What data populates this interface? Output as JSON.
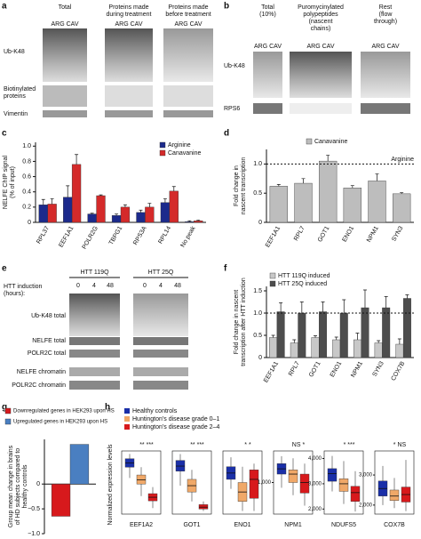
{
  "panel_labels": [
    "a",
    "b",
    "c",
    "d",
    "e",
    "f",
    "g",
    "h"
  ],
  "blot_a": {
    "headers": [
      [
        "Total"
      ],
      [
        "Proteins made",
        "during treatment"
      ],
      [
        "Proteins made",
        "before treatment"
      ]
    ],
    "lanes": [
      "ARG CAV",
      "ARG CAV",
      "ARG CAV"
    ],
    "rows": [
      [
        "Ub-K48"
      ],
      [
        "Biotinylated",
        "proteins"
      ],
      [
        "Vimentin"
      ]
    ]
  },
  "blot_b": {
    "headers": [
      [
        "Total",
        "(10%)"
      ],
      [
        "Puromycinylated",
        "polypeptides",
        "(nascent",
        "chains)"
      ],
      [
        "Rest",
        "(flow",
        "through)"
      ]
    ],
    "lanes": [
      "ARG CAV",
      "ARG CAV",
      "ARG CAV"
    ],
    "rows": [
      [
        "Ub-K48"
      ],
      [
        "RPS6"
      ]
    ]
  },
  "blot_e": {
    "induction": [
      "HTT induction",
      "(hours):"
    ],
    "constructs": [
      "HTT 119Q",
      "HTT 25Q"
    ],
    "hours": [
      0,
      4,
      48,
      0,
      4,
      48
    ],
    "rows": [
      "Ub-K48 total",
      "NELFE total",
      "POLR2C total",
      "NELFE chromatin",
      "POLR2C chromatin"
    ]
  },
  "chart_data": [
    {
      "type": "bar",
      "ylabel": [
        "NELFE ChIP signal",
        "(% of input)"
      ],
      "categories": [
        "RPL37",
        "EEF1A1",
        "POLR2G",
        "TBPG1",
        "RPS3A",
        "RPL14",
        "No peak"
      ],
      "series": [
        {
          "name": "Arginine",
          "color": "#1c2a8c",
          "values": [
            0.23,
            0.33,
            0.11,
            0.09,
            0.13,
            0.26,
            0.01
          ],
          "errors": [
            0.07,
            0.15,
            0.01,
            0.02,
            0.03,
            0.05,
            0.01
          ]
        },
        {
          "name": "Canavanine",
          "color": "#d42a2a",
          "values": [
            0.24,
            0.76,
            0.35,
            0.2,
            0.2,
            0.41,
            0.02
          ],
          "errors": [
            0.07,
            0.13,
            0.01,
            0.03,
            0.05,
            0.06,
            0.01
          ]
        }
      ],
      "ylim": [
        0,
        1.05
      ],
      "yticks": [
        0,
        0.2,
        0.4,
        0.6,
        0.8,
        {
          "value": 1,
          "label": "1.0"
        }
      ],
      "legend": "upper right"
    },
    {
      "type": "bar",
      "ylabel": [
        "Fold change in",
        "nascent transcription"
      ],
      "categories": [
        "EEF1A1",
        "RPL7",
        "GOT1",
        "ENO1",
        "NPM1",
        "SYN3"
      ],
      "series": [
        {
          "name": "Canavanine",
          "color": "#bdbdbd",
          "values": [
            0.62,
            0.67,
            1.05,
            0.59,
            0.71,
            0.49
          ],
          "errors": [
            0.03,
            0.08,
            0.1,
            0.04,
            0.12,
            0.02
          ]
        }
      ],
      "reference_line": 1,
      "reference_label": "Arginine",
      "ylim": [
        0,
        1.25
      ],
      "yticks": [
        0,
        0.5,
        {
          "value": 1,
          "label": "1.0"
        }
      ],
      "legend": "top"
    },
    {
      "type": "bar",
      "ylabel": [
        "Fold change in nascent",
        "transcription after HTT induction"
      ],
      "categories": [
        "EEF1A1",
        "RPL7",
        "GOT1",
        "ENO1",
        "NPM1",
        "SYN3",
        "COX7B"
      ],
      "series": [
        {
          "name": "HTT 119Q induced",
          "color": "#c8c8c8",
          "values": [
            0.45,
            0.33,
            0.45,
            0.4,
            0.4,
            0.33,
            0.3
          ],
          "errors": [
            0.05,
            0.07,
            0.04,
            0.06,
            0.15,
            0.05,
            0.12
          ]
        },
        {
          "name": "HTT 25Q induced",
          "color": "#4d4d4d",
          "values": [
            1.03,
            1.0,
            1.03,
            1.0,
            1.12,
            1.12,
            1.33
          ],
          "errors": [
            0.2,
            0.25,
            0.22,
            0.3,
            0.4,
            0.25,
            0.08
          ]
        }
      ],
      "reference_line": 1,
      "ylim": [
        0,
        1.6
      ],
      "yticks": [
        0,
        0.5,
        {
          "value": 1,
          "label": "1.0"
        },
        1.5
      ],
      "legend": "upper left"
    },
    {
      "type": "bar",
      "ylabel": [
        "Group mean change in brains",
        "of HD subjects compared to",
        "healthy controls"
      ],
      "series": [
        {
          "name": "Downregulated genes in HEK293 upon HS",
          "color": "#d7191c",
          "values": [
            -0.65
          ]
        },
        {
          "name": "Upregulated genes in HEK293 upon HS",
          "color": "#4a7fc1",
          "values": [
            0.8
          ]
        }
      ],
      "ylim": [
        -1.0,
        0.9
      ],
      "yticks": [
        {
          "value": -1,
          "label": "−1.0"
        },
        {
          "value": -0.5,
          "label": "−0.5"
        },
        0
      ],
      "legend": "top left"
    },
    {
      "type": "box",
      "ylabel": "Normalized expression levels",
      "groups": [
        {
          "name": "Healthy controls",
          "color": "#1a2fa8"
        },
        {
          "name": "Huntington’s disease grade 0–1",
          "color": "#f0a868"
        },
        {
          "name": "Huntington’s disease grade 2–4",
          "color": "#d7191c"
        }
      ],
      "subplots": [
        {
          "gene": "EEF1A2",
          "annotation": "** ***",
          "ylim": [
            0,
            105
          ],
          "yticks": [],
          "boxes": [
            {
              "low": 60,
              "q1": 78,
              "median": 85,
              "q3": 92,
              "high": 100
            },
            {
              "low": 30,
              "q1": 50,
              "median": 57,
              "q3": 65,
              "high": 78
            },
            {
              "low": 10,
              "q1": 22,
              "median": 28,
              "q3": 34,
              "high": 45
            }
          ]
        },
        {
          "gene": "GOT1",
          "annotation": "** ***",
          "ylim": [
            0,
            100
          ],
          "yticks": [],
          "boxes": [
            {
              "low": 45,
              "q1": 68,
              "median": 76,
              "q3": 85,
              "high": 95
            },
            {
              "low": 20,
              "q1": 35,
              "median": 45,
              "q3": 55,
              "high": 70
            },
            {
              "low": 5,
              "q1": 8,
              "median": 11,
              "q3": 15,
              "high": 20
            }
          ]
        },
        {
          "gene": "ENO1",
          "annotation": "*   *",
          "ylim": [
            0,
            100
          ],
          "yticks": [],
          "boxes": [
            {
              "low": 40,
              "q1": 55,
              "median": 65,
              "q3": 75,
              "high": 90
            },
            {
              "low": 5,
              "q1": 20,
              "median": 35,
              "q3": 50,
              "high": 75
            },
            {
              "low": 5,
              "q1": 25,
              "median": 55,
              "q3": 70,
              "high": 80
            }
          ]
        },
        {
          "gene": "NPM1",
          "annotation": "NS  *",
          "ylim": [
            700,
            1300
          ],
          "yticks": [
            {
              "value": 1000,
              "label": "1,000"
            }
          ],
          "boxes": [
            {
              "low": 950,
              "q1": 1080,
              "median": 1130,
              "q3": 1180,
              "high": 1250
            },
            {
              "low": 880,
              "q1": 1000,
              "median": 1080,
              "q3": 1120,
              "high": 1230
            },
            {
              "low": 780,
              "q1": 900,
              "median": 1000,
              "q3": 1080,
              "high": 1180
            }
          ]
        },
        {
          "gene": "NDUFS5",
          "annotation": "* ***",
          "ylim": [
            1800,
            4300
          ],
          "yticks": [
            {
              "value": 2000,
              "label": "2,000"
            },
            {
              "value": 3000,
              "label": "3,000"
            },
            {
              "value": 4000,
              "label": "4,000"
            }
          ],
          "boxes": [
            {
              "low": 2700,
              "q1": 3100,
              "median": 3400,
              "q3": 3600,
              "high": 4100
            },
            {
              "low": 2200,
              "q1": 2700,
              "median": 3000,
              "q3": 3200,
              "high": 3900
            },
            {
              "low": 1900,
              "q1": 2300,
              "median": 2650,
              "q3": 2900,
              "high": 3500
            }
          ]
        },
        {
          "gene": "COX7B",
          "annotation": "*  NS",
          "ylim": [
            1700,
            3800
          ],
          "yticks": [
            {
              "value": 2000,
              "label": "2,000"
            },
            {
              "value": 3000,
              "label": "3,000"
            }
          ],
          "boxes": [
            {
              "low": 2000,
              "q1": 2300,
              "median": 2550,
              "q3": 2800,
              "high": 3300
            },
            {
              "low": 1900,
              "q1": 2150,
              "median": 2300,
              "q3": 2500,
              "high": 2900
            },
            {
              "low": 1800,
              "q1": 2100,
              "median": 2350,
              "q3": 2600,
              "high": 3500
            }
          ]
        }
      ]
    }
  ]
}
